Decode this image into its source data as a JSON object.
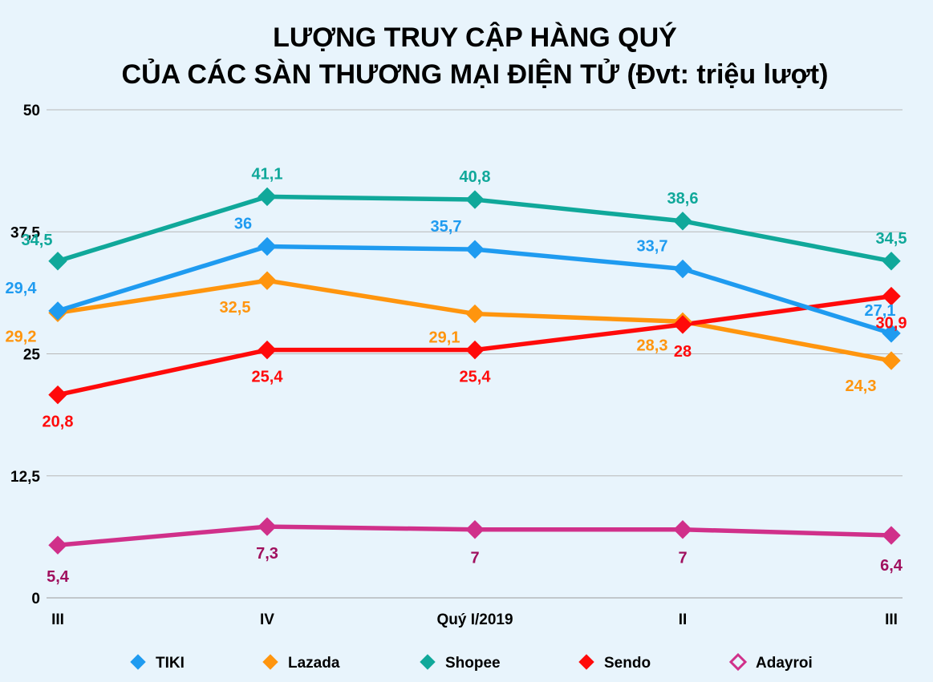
{
  "chart_data": {
    "type": "line",
    "title_lines": [
      "LƯỢNG TRUY CẬP HÀNG QUÝ",
      "CỦA CÁC SÀN THƯƠNG MẠI ĐIỆN TỬ (Đvt: triệu lượt)"
    ],
    "categories": [
      "III",
      "IV",
      "Quý I/2019",
      "II",
      "III"
    ],
    "yticks": [
      "0",
      "12,5",
      "25",
      "37,5",
      "50"
    ],
    "ylim": [
      0,
      50
    ],
    "grid": true,
    "legend_position": "bottom",
    "series": [
      {
        "name": "TIKI",
        "color": "#1f9bf0",
        "marker": "diamond-filled",
        "values": [
          29.4,
          36,
          35.7,
          33.7,
          27.1
        ],
        "labels": [
          "29,4",
          "36",
          "35,7",
          "33,7",
          "27,1"
        ]
      },
      {
        "name": "Lazada",
        "color": "#ff950e",
        "marker": "diamond-filled",
        "values": [
          29.2,
          32.5,
          29.1,
          28.3,
          24.3
        ],
        "labels": [
          "29,2",
          "32,5",
          "29,1",
          "28,3",
          "24,3"
        ]
      },
      {
        "name": "Shopee",
        "color": "#10a89a",
        "marker": "diamond-filled",
        "values": [
          34.5,
          41.1,
          40.8,
          38.6,
          34.5
        ],
        "labels": [
          "34,5",
          "41,1",
          "40,8",
          "38,6",
          "34,5"
        ]
      },
      {
        "name": "Sendo",
        "color": "#ff0a0a",
        "marker": "diamond-filled",
        "values": [
          20.8,
          25.4,
          25.4,
          28,
          30.9
        ],
        "labels": [
          "20,8",
          "25,4",
          "25,4",
          "28",
          "30,9"
        ]
      },
      {
        "name": "Adayroi",
        "color": "#d0308a",
        "label_color": "#a0105e",
        "marker": "diamond-hollow",
        "values": [
          5.4,
          7.3,
          7,
          7,
          6.4
        ],
        "labels": [
          "5,4",
          "7,3",
          "7",
          "7",
          "6,4"
        ]
      }
    ]
  }
}
